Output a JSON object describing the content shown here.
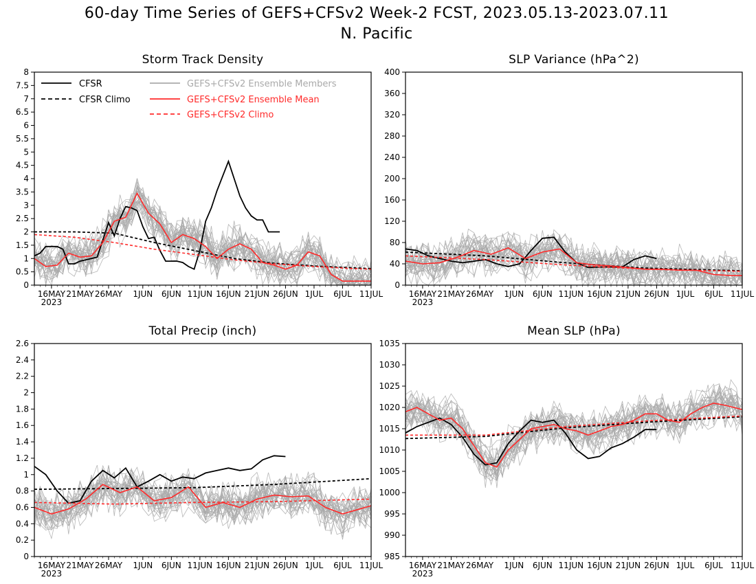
{
  "figure": {
    "title_line1": "60-day Time Series of GEFS+CFSv2 Week-2 FCST, 2023.05.13-2023.07.11",
    "title_line2": "N. Pacific"
  },
  "colors": {
    "cfsr": "#000000",
    "ens_members": "#a9a9a9",
    "ens_mean": "#ff2a2a",
    "climo_gefs": "#ff2a2a",
    "climo_cfsr": "#000000"
  },
  "legend": [
    {
      "label": "CFSR",
      "style": "solid",
      "color": "#000000"
    },
    {
      "label": "CFSR Climo",
      "style": "dashed",
      "color": "#000000"
    },
    {
      "label": "GEFS+CFSv2 Ensemble Members",
      "style": "solid",
      "color": "#a9a9a9"
    },
    {
      "label": "GEFS+CFSv2 Ensemble Mean",
      "style": "solid",
      "color": "#ff2a2a"
    },
    {
      "label": "GEFS+CFSv2 Climo",
      "style": "dashed",
      "color": "#ff2a2a"
    }
  ],
  "chart_data": [
    {
      "type": "line",
      "title": "Storm Track Density",
      "x_tick_labels": [
        "16MAY",
        "21MAY",
        "26MAY",
        "1JUN",
        "6JUN",
        "11JUN",
        "16JUN",
        "21JUN",
        "26JUN",
        "1JUL",
        "6JUL",
        "11JUL"
      ],
      "x_year_label": "2023",
      "ylim": [
        0,
        8
      ],
      "y_ticks": [
        "0",
        "0.5",
        "1",
        "1.5",
        "2",
        "2.5",
        "3",
        "3.5",
        "4",
        "4.5",
        "5",
        "5.5",
        "6",
        "6.5",
        "7",
        "7.5",
        "8"
      ],
      "series": [
        {
          "name": "CFSR",
          "x": [
            "2023-05-13",
            "2023-05-14",
            "2023-05-15",
            "2023-05-16",
            "2023-05-17",
            "2023-05-18",
            "2023-05-19",
            "2023-05-20",
            "2023-05-21",
            "2023-05-22",
            "2023-05-23",
            "2023-05-24",
            "2023-05-25",
            "2023-05-26",
            "2023-05-27",
            "2023-05-28",
            "2023-05-29",
            "2023-05-30",
            "2023-05-31",
            "2023-06-01",
            "2023-06-02",
            "2023-06-03",
            "2023-06-04",
            "2023-06-05",
            "2023-06-06",
            "2023-06-07",
            "2023-06-08",
            "2023-06-09",
            "2023-06-10",
            "2023-06-11",
            "2023-06-12",
            "2023-06-13",
            "2023-06-14",
            "2023-06-15",
            "2023-06-16",
            "2023-06-17",
            "2023-06-18",
            "2023-06-19",
            "2023-06-20",
            "2023-06-21",
            "2023-06-22",
            "2023-06-23",
            "2023-06-24",
            "2023-06-25"
          ],
          "y": [
            1.1,
            1.2,
            1.45,
            1.45,
            1.45,
            1.35,
            0.8,
            0.8,
            0.9,
            0.95,
            1.0,
            1.05,
            1.7,
            2.35,
            1.85,
            2.5,
            2.95,
            2.9,
            2.8,
            2.2,
            1.75,
            1.8,
            1.3,
            0.9,
            0.9,
            0.9,
            0.85,
            0.7,
            0.6,
            1.3,
            2.4,
            2.9,
            3.55,
            4.1,
            4.65,
            4.0,
            3.35,
            2.9,
            2.6,
            2.45,
            2.45,
            2.0,
            2.0,
            2.0
          ]
        },
        {
          "name": "CFSR Climo",
          "x": [
            "2023-05-13",
            "2023-05-20",
            "2023-05-27",
            "2023-06-03",
            "2023-06-10",
            "2023-06-17",
            "2023-06-24",
            "2023-07-01",
            "2023-07-08",
            "2023-07-11"
          ],
          "y": [
            2.0,
            2.0,
            1.95,
            1.6,
            1.3,
            1.0,
            0.82,
            0.72,
            0.65,
            0.62
          ]
        },
        {
          "name": "GEFS+CFSv2 Ensemble Mean",
          "x": [
            "2023-05-13",
            "2023-05-15",
            "2023-05-17",
            "2023-05-19",
            "2023-05-21",
            "2023-05-23",
            "2023-05-25",
            "2023-05-27",
            "2023-05-29",
            "2023-05-31",
            "2023-06-02",
            "2023-06-04",
            "2023-06-06",
            "2023-06-08",
            "2023-06-10",
            "2023-06-12",
            "2023-06-14",
            "2023-06-16",
            "2023-06-18",
            "2023-06-20",
            "2023-06-22",
            "2023-06-24",
            "2023-06-26",
            "2023-06-28",
            "2023-06-30",
            "2023-07-02",
            "2023-07-04",
            "2023-07-06",
            "2023-07-08",
            "2023-07-11"
          ],
          "y": [
            1.0,
            0.7,
            0.75,
            1.2,
            1.05,
            1.1,
            1.6,
            2.4,
            2.55,
            3.45,
            2.7,
            2.3,
            1.6,
            1.9,
            1.75,
            1.45,
            1.0,
            1.35,
            1.55,
            1.35,
            0.85,
            0.75,
            0.6,
            0.75,
            1.25,
            1.1,
            0.4,
            0.15,
            0.15,
            0.15
          ]
        },
        {
          "name": "GEFS+CFSv2 Climo",
          "x": [
            "2023-05-13",
            "2023-05-20",
            "2023-05-27",
            "2023-06-03",
            "2023-06-10",
            "2023-06-17",
            "2023-06-24",
            "2023-07-01",
            "2023-07-08",
            "2023-07-11"
          ],
          "y": [
            1.9,
            1.8,
            1.6,
            1.35,
            1.15,
            0.95,
            0.8,
            0.7,
            0.62,
            0.6
          ]
        }
      ]
    },
    {
      "type": "line",
      "title": "SLP Variance (hPa^2)",
      "x_tick_labels": [
        "16MAY",
        "21MAY",
        "26MAY",
        "1JUN",
        "6JUN",
        "11JUN",
        "16JUN",
        "21JUN",
        "26JUN",
        "1JUL",
        "6JUL",
        "11JUL"
      ],
      "x_year_label": "2023",
      "ylim": [
        0,
        400
      ],
      "y_ticks": [
        "0",
        "40",
        "80",
        "120",
        "160",
        "200",
        "240",
        "280",
        "320",
        "360",
        "400"
      ],
      "series": [
        {
          "name": "CFSR",
          "x": [
            "2023-05-13",
            "2023-05-15",
            "2023-05-17",
            "2023-05-19",
            "2023-05-21",
            "2023-05-23",
            "2023-05-25",
            "2023-05-27",
            "2023-05-29",
            "2023-05-31",
            "2023-06-02",
            "2023-06-04",
            "2023-06-06",
            "2023-06-08",
            "2023-06-10",
            "2023-06-12",
            "2023-06-14",
            "2023-06-16",
            "2023-06-18",
            "2023-06-20",
            "2023-06-22",
            "2023-06-24",
            "2023-06-26"
          ],
          "y": [
            68,
            65,
            55,
            50,
            45,
            42,
            45,
            48,
            40,
            35,
            40,
            65,
            88,
            90,
            62,
            42,
            33,
            34,
            34,
            34,
            48,
            55,
            50
          ]
        },
        {
          "name": "CFSR Climo",
          "x": [
            "2023-05-13",
            "2023-05-27",
            "2023-06-10",
            "2023-06-24",
            "2023-07-11"
          ],
          "y": [
            62,
            55,
            42,
            32,
            27
          ]
        },
        {
          "name": "GEFS+CFSv2 Ensemble Mean",
          "x": [
            "2023-05-13",
            "2023-05-16",
            "2023-05-19",
            "2023-05-22",
            "2023-05-25",
            "2023-05-28",
            "2023-05-31",
            "2023-06-03",
            "2023-06-06",
            "2023-06-09",
            "2023-06-12",
            "2023-06-15",
            "2023-06-18",
            "2023-06-21",
            "2023-06-24",
            "2023-06-27",
            "2023-06-30",
            "2023-07-03",
            "2023-07-06",
            "2023-07-09",
            "2023-07-11"
          ],
          "y": [
            45,
            40,
            42,
            52,
            65,
            58,
            70,
            50,
            62,
            68,
            42,
            38,
            36,
            33,
            30,
            30,
            28,
            28,
            20,
            18,
            18
          ]
        },
        {
          "name": "GEFS+CFSv2 Climo",
          "x": [
            "2023-05-13",
            "2023-05-27",
            "2023-06-10",
            "2023-06-24",
            "2023-07-11"
          ],
          "y": [
            55,
            48,
            38,
            30,
            26
          ]
        }
      ]
    },
    {
      "type": "line",
      "title": "Total Precip (inch)",
      "x_tick_labels": [
        "16MAY",
        "21MAY",
        "26MAY",
        "1JUN",
        "6JUN",
        "11JUN",
        "16JUN",
        "21JUN",
        "26JUN",
        "1JUL",
        "6JUL",
        "11JUL"
      ],
      "x_year_label": "2023",
      "ylim": [
        0,
        2.6
      ],
      "y_ticks": [
        "0",
        "0.2",
        "0.4",
        "0.6",
        "0.8",
        "1",
        "1.2",
        "1.4",
        "1.6",
        "1.8",
        "2",
        "2.2",
        "2.4",
        "2.6"
      ],
      "series": [
        {
          "name": "CFSR",
          "x": [
            "2023-05-13",
            "2023-05-15",
            "2023-05-17",
            "2023-05-19",
            "2023-05-21",
            "2023-05-23",
            "2023-05-25",
            "2023-05-27",
            "2023-05-29",
            "2023-05-31",
            "2023-06-02",
            "2023-06-04",
            "2023-06-06",
            "2023-06-08",
            "2023-06-10",
            "2023-06-12",
            "2023-06-14",
            "2023-06-16",
            "2023-06-18",
            "2023-06-20",
            "2023-06-22",
            "2023-06-24",
            "2023-06-26"
          ],
          "y": [
            1.1,
            1.0,
            0.8,
            0.65,
            0.68,
            0.92,
            1.05,
            0.96,
            1.08,
            0.85,
            0.92,
            1.0,
            0.92,
            0.97,
            0.95,
            1.02,
            1.05,
            1.08,
            1.05,
            1.07,
            1.18,
            1.23,
            1.22
          ]
        },
        {
          "name": "CFSR Climo",
          "x": [
            "2023-05-13",
            "2023-05-27",
            "2023-06-10",
            "2023-06-24",
            "2023-07-11"
          ],
          "y": [
            0.82,
            0.83,
            0.84,
            0.88,
            0.95
          ]
        },
        {
          "name": "GEFS+CFSv2 Ensemble Mean",
          "x": [
            "2023-05-13",
            "2023-05-16",
            "2023-05-19",
            "2023-05-22",
            "2023-05-25",
            "2023-05-28",
            "2023-05-31",
            "2023-06-03",
            "2023-06-06",
            "2023-06-09",
            "2023-06-12",
            "2023-06-15",
            "2023-06-18",
            "2023-06-21",
            "2023-06-24",
            "2023-06-27",
            "2023-06-30",
            "2023-07-03",
            "2023-07-06",
            "2023-07-09",
            "2023-07-11"
          ],
          "y": [
            0.6,
            0.52,
            0.58,
            0.7,
            0.88,
            0.78,
            0.85,
            0.68,
            0.72,
            0.85,
            0.6,
            0.66,
            0.6,
            0.7,
            0.75,
            0.73,
            0.74,
            0.6,
            0.52,
            0.58,
            0.62
          ]
        },
        {
          "name": "GEFS+CFSv2 Climo",
          "x": [
            "2023-05-13",
            "2023-05-27",
            "2023-06-10",
            "2023-06-24",
            "2023-07-11"
          ],
          "y": [
            0.66,
            0.64,
            0.66,
            0.67,
            0.7
          ]
        }
      ]
    },
    {
      "type": "line",
      "title": "Mean SLP (hPa)",
      "x_tick_labels": [
        "16MAY",
        "21MAY",
        "26MAY",
        "1JUN",
        "6JUN",
        "11JUN",
        "16JUN",
        "21JUN",
        "26JUN",
        "1JUL",
        "6JUL",
        "11JUL"
      ],
      "x_year_label": "2023",
      "ylim": [
        985,
        1035
      ],
      "y_ticks": [
        "985",
        "990",
        "995",
        "1000",
        "1005",
        "1010",
        "1015",
        "1020",
        "1025",
        "1030",
        "1035"
      ],
      "series": [
        {
          "name": "CFSR",
          "x": [
            "2023-05-13",
            "2023-05-15",
            "2023-05-17",
            "2023-05-19",
            "2023-05-21",
            "2023-05-23",
            "2023-05-25",
            "2023-05-27",
            "2023-05-29",
            "2023-05-31",
            "2023-06-02",
            "2023-06-04",
            "2023-06-06",
            "2023-06-08",
            "2023-06-10",
            "2023-06-12",
            "2023-06-14",
            "2023-06-16",
            "2023-06-18",
            "2023-06-20",
            "2023-06-22",
            "2023-06-24",
            "2023-06-26"
          ],
          "y": [
            1014,
            1015.5,
            1016.5,
            1017.5,
            1016,
            1013,
            1009,
            1006.5,
            1007,
            1011.5,
            1014.5,
            1017,
            1016.5,
            1017,
            1014,
            1010,
            1008,
            1008.5,
            1010.5,
            1011.5,
            1013,
            1014.8,
            1014.8
          ]
        },
        {
          "name": "CFSR Climo",
          "x": [
            "2023-05-13",
            "2023-05-27",
            "2023-06-10",
            "2023-06-24",
            "2023-07-11"
          ],
          "y": [
            1012.7,
            1013.2,
            1015.2,
            1016.5,
            1017.8
          ]
        },
        {
          "name": "GEFS+CFSv2 Ensemble Mean",
          "x": [
            "2023-05-13",
            "2023-05-15",
            "2023-05-17",
            "2023-05-19",
            "2023-05-21",
            "2023-05-23",
            "2023-05-25",
            "2023-05-27",
            "2023-05-29",
            "2023-05-31",
            "2023-06-02",
            "2023-06-04",
            "2023-06-06",
            "2023-06-08",
            "2023-06-10",
            "2023-06-12",
            "2023-06-14",
            "2023-06-16",
            "2023-06-18",
            "2023-06-20",
            "2023-06-22",
            "2023-06-24",
            "2023-06-26",
            "2023-06-28",
            "2023-06-30",
            "2023-07-02",
            "2023-07-04",
            "2023-07-06",
            "2023-07-08",
            "2023-07-11"
          ],
          "y": [
            1019,
            1020,
            1018.5,
            1017,
            1017.5,
            1015,
            1011,
            1007,
            1006,
            1010,
            1012.5,
            1015,
            1015.5,
            1016,
            1015,
            1014.5,
            1013.5,
            1014.5,
            1015.5,
            1016,
            1017,
            1018.5,
            1018.5,
            1017,
            1016.5,
            1018.5,
            1020,
            1021,
            1020.5,
            1019.5
          ]
        },
        {
          "name": "GEFS+CFSv2 Climo",
          "x": [
            "2023-05-13",
            "2023-05-27",
            "2023-06-10",
            "2023-06-24",
            "2023-07-11"
          ],
          "y": [
            1013.5,
            1013.5,
            1015.5,
            1016.8,
            1018
          ]
        }
      ]
    }
  ]
}
